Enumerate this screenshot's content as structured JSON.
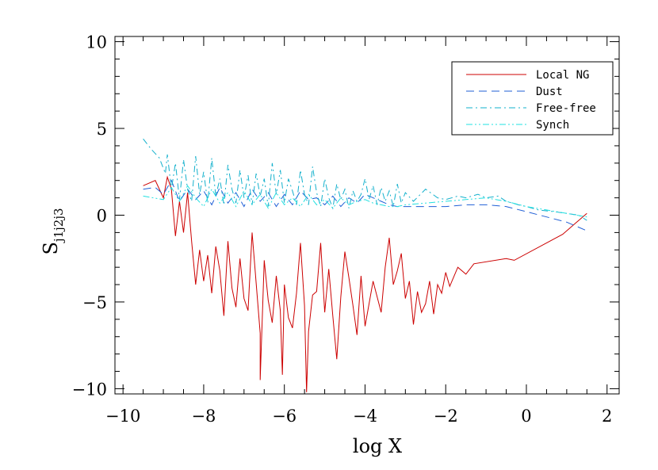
{
  "chart_data": {
    "type": "line",
    "xlabel": "log X",
    "ylabel": "S",
    "ylabel_subscript": "j1j2j3",
    "xlim": [
      -10.2,
      2.3
    ],
    "ylim": [
      -10.3,
      10.3
    ],
    "x_ticks": [
      -10,
      -8,
      -6,
      -4,
      -2,
      0,
      2
    ],
    "x_tick_labels": [
      "−10",
      "−8",
      "−6",
      "−4",
      "−2",
      "0",
      "2"
    ],
    "y_ticks": [
      -10,
      -5,
      0,
      5,
      10
    ],
    "y_tick_labels": [
      "−10",
      "−5",
      "0",
      "5",
      "10"
    ],
    "grid": false,
    "legend_position": "top-right",
    "series": [
      {
        "name": "Local NG",
        "color": "#cc0000",
        "dash": "solid",
        "x": [
          -9.5,
          -9.2,
          -9.0,
          -8.9,
          -8.8,
          -8.7,
          -8.6,
          -8.5,
          -8.4,
          -8.3,
          -8.2,
          -8.1,
          -8.0,
          -7.9,
          -7.8,
          -7.7,
          -7.6,
          -7.5,
          -7.4,
          -7.3,
          -7.2,
          -7.1,
          -7.0,
          -6.9,
          -6.8,
          -6.7,
          -6.6,
          -6.5,
          -6.4,
          -6.3,
          -6.2,
          -6.1,
          -6.0,
          -5.9,
          -5.8,
          -5.7,
          -5.6,
          -5.5,
          -5.4,
          -5.3,
          -5.2,
          -5.1,
          -5.0,
          -4.9,
          -4.8,
          -4.7,
          -4.6,
          -4.5,
          -4.4,
          -4.3,
          -4.2,
          -4.1,
          -4.0,
          -3.8,
          -3.6,
          -3.5,
          -3.4,
          -3.3,
          -3.2,
          -3.1,
          -3.0,
          -2.9,
          -2.8,
          -2.7,
          -2.6,
          -2.5,
          -2.4,
          -2.3,
          -2.2,
          -2.1,
          -2.0,
          -1.9,
          -1.7,
          -1.5,
          -1.3,
          -0.5,
          -0.3,
          0.9,
          1.2,
          1.5
        ],
        "y": [
          1.7,
          2.0,
          1.0,
          2.2,
          1.5,
          -1.2,
          0.8,
          -1.0,
          1.3,
          -1.5,
          -4.0,
          -2.0,
          -3.8,
          -2.3,
          -4.5,
          -1.8,
          -3.2,
          -5.8,
          -1.5,
          -4.2,
          -5.3,
          -2.5,
          -4.8,
          -5.5,
          -1.0,
          -3.9,
          -6.8,
          -2.6,
          -4.9,
          -6.2,
          -3.5,
          -5.5,
          -4.0,
          -5.9,
          -6.5,
          -4.5,
          -1.6,
          -5.2,
          -6.7,
          -4.6,
          -4.4,
          -1.6,
          -5.6,
          -3.1,
          -5.8,
          -8.3,
          -4.7,
          -2.1,
          -3.6,
          -5.2,
          -6.9,
          -3.5,
          -6.4,
          -3.8,
          -5.6,
          -3.0,
          -1.3,
          -4.0,
          -3.2,
          -2.2,
          -4.8,
          -3.8,
          -6.3,
          -4.4,
          -5.6,
          -5.1,
          -3.8,
          -5.7,
          -4.0,
          -4.5,
          -3.3,
          -4.1,
          -3.0,
          -3.4,
          -2.8,
          -2.5,
          -2.6,
          -1.1,
          -0.5,
          0.1
        ],
        "spikes": [
          {
            "x": -6.6,
            "y": -9.5
          },
          {
            "x": -6.05,
            "y": -9.2
          },
          {
            "x": -5.45,
            "y": -10.2
          }
        ]
      },
      {
        "name": "Dust",
        "color": "#1f5fd6",
        "dash": "long-dash",
        "x": [
          -9.5,
          -9.2,
          -9.0,
          -8.8,
          -8.6,
          -8.4,
          -8.2,
          -8.0,
          -7.8,
          -7.6,
          -7.4,
          -7.2,
          -7.0,
          -6.8,
          -6.6,
          -6.4,
          -6.2,
          -6.0,
          -5.8,
          -5.6,
          -5.4,
          -5.2,
          -5.0,
          -4.8,
          -4.6,
          -4.4,
          -4.2,
          -4.0,
          -3.8,
          -3.6,
          -3.4,
          -3.2,
          -3.0,
          -2.5,
          -2.0,
          -1.5,
          -1.0,
          -0.5,
          0.0,
          0.5,
          1.0,
          1.5
        ],
        "y": [
          1.5,
          1.6,
          1.2,
          2.0,
          0.8,
          1.5,
          0.9,
          1.4,
          0.6,
          1.6,
          0.7,
          1.3,
          0.5,
          1.5,
          0.8,
          1.3,
          0.5,
          1.2,
          0.6,
          1.4,
          0.9,
          1.0,
          0.6,
          1.1,
          0.5,
          1.0,
          0.7,
          1.2,
          1.0,
          0.8,
          0.6,
          0.5,
          0.5,
          0.5,
          0.5,
          0.6,
          0.6,
          0.5,
          0.2,
          -0.1,
          -0.4,
          -0.9
        ]
      },
      {
        "name": "Free-free",
        "color": "#12b0cc",
        "dash": "dash-dot",
        "x": [
          -9.5,
          -9.3,
          -9.1,
          -8.95,
          -8.9,
          -8.8,
          -8.7,
          -8.6,
          -8.5,
          -8.4,
          -8.3,
          -8.2,
          -8.1,
          -8.0,
          -7.9,
          -7.8,
          -7.7,
          -7.6,
          -7.5,
          -7.4,
          -7.3,
          -7.2,
          -7.1,
          -7.0,
          -6.9,
          -6.8,
          -6.7,
          -6.6,
          -6.5,
          -6.4,
          -6.3,
          -6.2,
          -6.1,
          -6.0,
          -5.9,
          -5.8,
          -5.7,
          -5.6,
          -5.5,
          -5.4,
          -5.3,
          -5.2,
          -5.1,
          -5.0,
          -4.9,
          -4.8,
          -4.7,
          -4.6,
          -4.5,
          -4.4,
          -4.3,
          -4.2,
          -4.1,
          -4.0,
          -3.9,
          -3.8,
          -3.7,
          -3.6,
          -3.5,
          -3.4,
          -3.3,
          -3.2,
          -3.1,
          -3.0,
          -2.8,
          -2.5,
          -2.2,
          -2.0,
          -1.7,
          -1.5,
          -1.2,
          -1.0,
          -0.7,
          -0.5,
          -0.2,
          0.0,
          0.3,
          0.7,
          1.0,
          1.3,
          1.5
        ],
        "y": [
          4.4,
          3.8,
          3.3,
          2.4,
          3.5,
          1.5,
          3.0,
          0.9,
          3.2,
          1.5,
          0.8,
          3.4,
          1.2,
          2.5,
          0.7,
          3.3,
          1.1,
          2.1,
          0.6,
          2.9,
          1.5,
          0.7,
          2.6,
          1.0,
          2.3,
          0.6,
          2.4,
          1.1,
          2.1,
          0.5,
          3.0,
          1.2,
          2.6,
          0.7,
          2.1,
          1.4,
          0.6,
          2.6,
          1.2,
          0.6,
          2.8,
          1.3,
          0.5,
          2.1,
          1.0,
          0.4,
          1.8,
          0.9,
          1.5,
          0.4,
          1.4,
          0.8,
          1.2,
          2.1,
          0.9,
          1.7,
          0.6,
          1.6,
          0.8,
          1.4,
          0.5,
          1.8,
          0.7,
          1.3,
          0.8,
          1.5,
          1.0,
          0.9,
          1.1,
          1.0,
          1.2,
          1.0,
          1.1,
          0.8,
          0.6,
          0.5,
          0.3,
          0.2,
          0.1,
          0.0,
          -0.3
        ]
      },
      {
        "name": "Synch",
        "color": "#22e0e0",
        "dash": "dash-dot-dot",
        "x": [
          -9.5,
          -9.0,
          -8.8,
          -8.6,
          -8.4,
          -8.2,
          -8.0,
          -7.8,
          -7.6,
          -7.4,
          -7.2,
          -7.0,
          -6.8,
          -6.6,
          -6.4,
          -6.2,
          -6.0,
          -5.8,
          -5.6,
          -5.4,
          -5.2,
          -5.0,
          -4.8,
          -4.6,
          -4.4,
          -4.2,
          -4.0,
          -3.8,
          -3.6,
          -3.4,
          -3.2,
          -3.0,
          -2.5,
          -2.0,
          -1.5,
          -1.0,
          -0.5,
          0.0,
          0.5,
          1.0,
          1.5
        ],
        "y": [
          1.1,
          0.9,
          1.6,
          0.8,
          1.7,
          1.0,
          0.5,
          1.5,
          0.7,
          1.3,
          0.5,
          1.4,
          0.6,
          1.2,
          0.4,
          1.3,
          0.6,
          1.0,
          0.5,
          1.2,
          0.6,
          0.9,
          0.4,
          1.0,
          0.6,
          0.8,
          0.9,
          0.7,
          0.6,
          0.5,
          0.5,
          0.6,
          0.7,
          0.8,
          0.9,
          1.0,
          0.8,
          0.5,
          0.3,
          0.1,
          -0.1
        ]
      }
    ]
  }
}
